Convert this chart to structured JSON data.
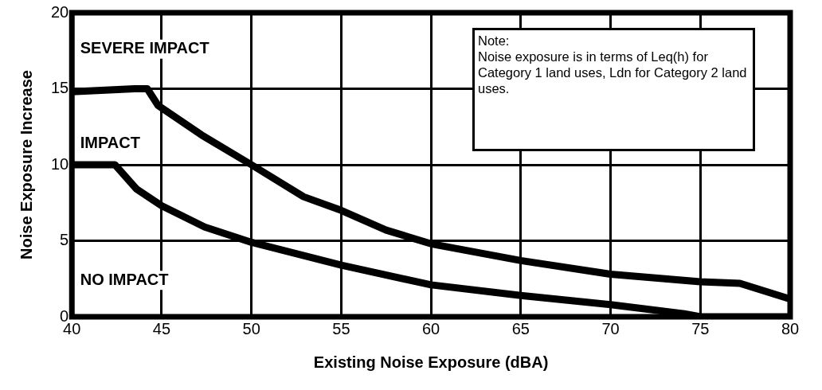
{
  "chart_data": {
    "type": "line",
    "xlabel": "Existing Noise Exposure (dBA)",
    "ylabel": "Noise Exposure Increase",
    "xlim": [
      40,
      80
    ],
    "xticks": [
      40,
      45,
      50,
      55,
      60,
      65,
      70,
      75,
      80
    ],
    "ylim": [
      0,
      20
    ],
    "yticks": [
      0,
      5,
      10,
      15,
      20
    ],
    "grid": true,
    "legend": false,
    "marker": "none",
    "line_style": "solid",
    "series": [
      {
        "color": "#000000",
        "x": [
          40,
          43.5,
          44.2,
          44.8,
          47.3,
          50,
          52.9,
          55,
          57.5,
          60,
          65,
          70,
          75,
          77.2,
          79.9
        ],
        "values": [
          14.8,
          15,
          15,
          13.9,
          11.9,
          10,
          7.9,
          7,
          5.7,
          4.8,
          3.7,
          2.8,
          2.3,
          2.2,
          1.2
        ]
      },
      {
        "color": "#000000",
        "x": [
          40,
          42.4,
          43.6,
          45,
          47.4,
          50,
          55,
          60,
          65,
          70,
          74.1,
          75,
          80
        ],
        "values": [
          10,
          10,
          8.4,
          7.3,
          5.9,
          4.9,
          3.4,
          2.1,
          1.4,
          0.8,
          0.2,
          0,
          0
        ]
      }
    ],
    "annotations": [
      "SEVERE IMPACT",
      "IMPACT",
      "NO IMPACT",
      "Note:",
      "Noise exposure is in terms of Leq(h) for Category 1 land uses, Ldn for Category 2 land uses."
    ]
  }
}
